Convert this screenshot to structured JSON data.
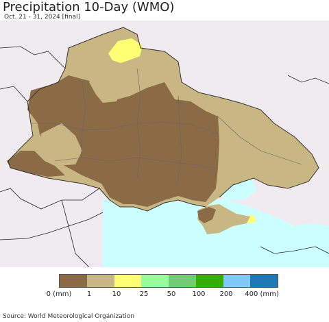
{
  "header": {
    "title": "Precipitation 10-Day (WMO)",
    "subtitle": "Oct. 21 - 31, 2024 [final]"
  },
  "legend": {
    "colors": [
      "#8b6a46",
      "#c9b783",
      "#ffff73",
      "#9bfa9b",
      "#73cc73",
      "#39ad07",
      "#82c8fa",
      "#1e78b4"
    ],
    "ticks": [
      "0 (mm)",
      "1",
      "10",
      "25",
      "50",
      "100",
      "200",
      "400 (mm)"
    ]
  },
  "map_colors": {
    "background": "#efebef",
    "sea": "#ccffff",
    "dry": "#8b6a46",
    "light": "#c9b783",
    "moderate": "#ffff73"
  },
  "footer": {
    "source": "Source: World Meteorological Organization"
  }
}
